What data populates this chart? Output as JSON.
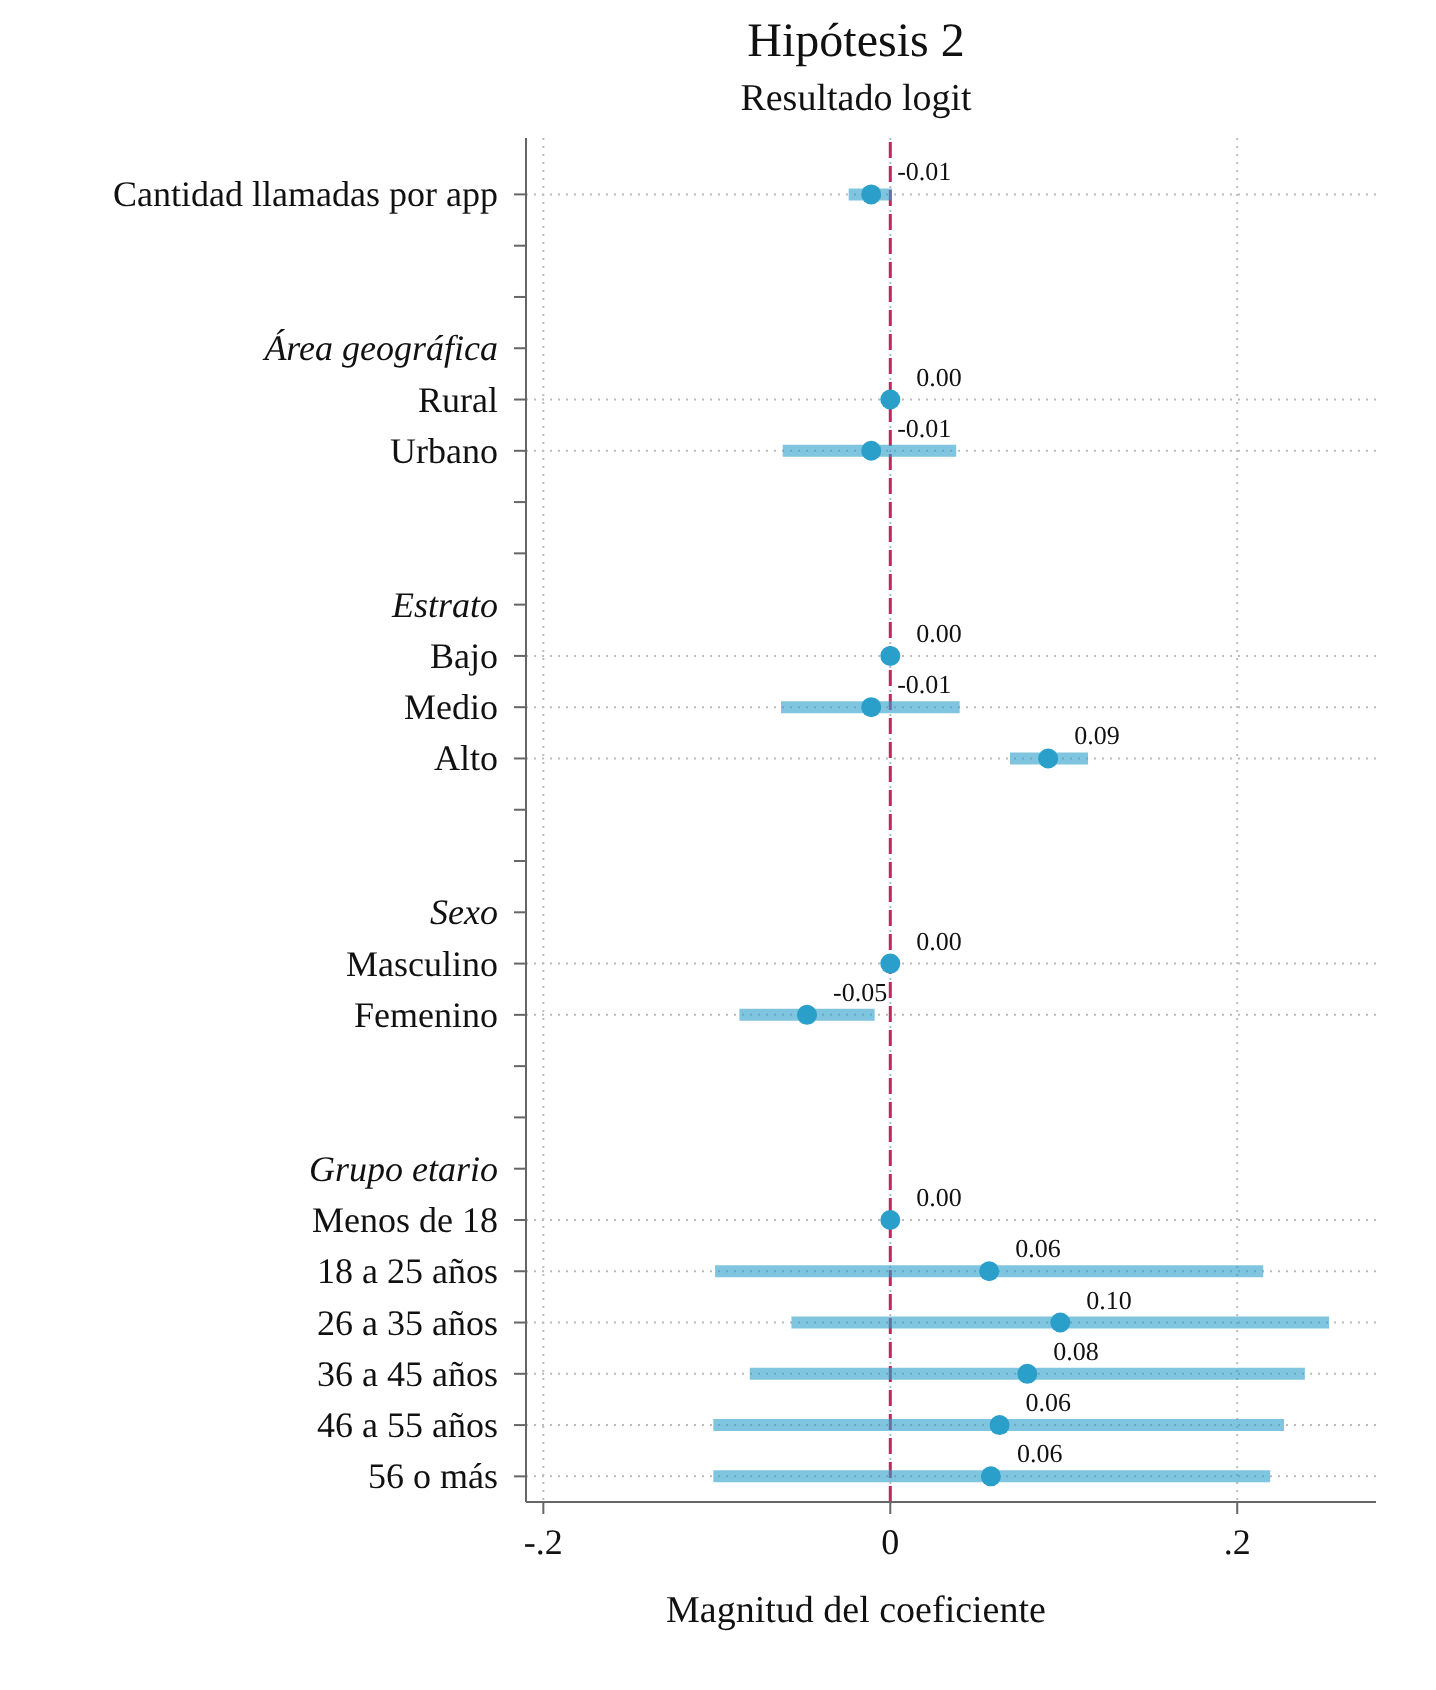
{
  "chart_data": {
    "type": "scatter",
    "orientation": "horizontal",
    "title": "Hipótesis 2",
    "subtitle": "Resultado logit",
    "xlabel": "Magnitud del coeficiente",
    "categories": [
      "Cantidad llamadas por app",
      null,
      null,
      "Área geográfica",
      "Rural",
      "Urbano",
      null,
      null,
      "Estrato",
      "Bajo",
      "Medio",
      "Alto",
      null,
      null,
      "Sexo",
      "Masculino",
      "Femenino",
      null,
      null,
      "Grupo etario",
      "Menos de 18",
      "18 a 25 años",
      "26 a 35 años",
      "36 a 45 años",
      "46 a 55 años",
      "56 o más"
    ],
    "series": [
      {
        "color": "#2a9fc9",
        "marker": "circle",
        "values": [
          -0.011,
          null,
          null,
          null,
          0,
          -0.011,
          null,
          null,
          null,
          0,
          -0.011,
          0.091,
          null,
          null,
          null,
          0,
          -0.048,
          null,
          null,
          null,
          0,
          0.057,
          0.098,
          0.079,
          0.063,
          0.058
        ],
        "errors": [
          [
            -0.024,
            0.001
          ],
          null,
          null,
          null,
          null,
          [
            -0.062,
            0.038
          ],
          null,
          null,
          null,
          null,
          [
            -0.063,
            0.04
          ],
          [
            0.069,
            0.114
          ],
          null,
          null,
          null,
          null,
          [
            -0.087,
            -0.009
          ],
          null,
          null,
          null,
          null,
          [
            -0.101,
            0.215
          ],
          [
            -0.057,
            0.253
          ],
          [
            -0.081,
            0.239
          ],
          [
            -0.102,
            0.227
          ],
          [
            -0.102,
            0.219
          ]
        ],
        "value_labels": [
          "-0.01",
          null,
          null,
          null,
          "0.00",
          "-0.01",
          null,
          null,
          null,
          "0.00",
          "-0.01",
          "0.09",
          null,
          null,
          null,
          "0.00",
          "-0.05",
          null,
          null,
          null,
          "0.00",
          "0.06",
          "0.10",
          "0.08",
          "0.06",
          "0.06"
        ]
      }
    ],
    "xlim": [
      -0.21,
      0.28
    ],
    "xticks": [
      {
        "value": -0.2,
        "label": "-.2"
      },
      {
        "value": 0,
        "label": "0"
      },
      {
        "value": 0.2,
        "label": ".2"
      }
    ],
    "ref_lines": [
      {
        "axis": "x",
        "value": 0,
        "color": "#c0285a",
        "line_style": "dashed"
      }
    ],
    "grid": true,
    "legend": false
  }
}
